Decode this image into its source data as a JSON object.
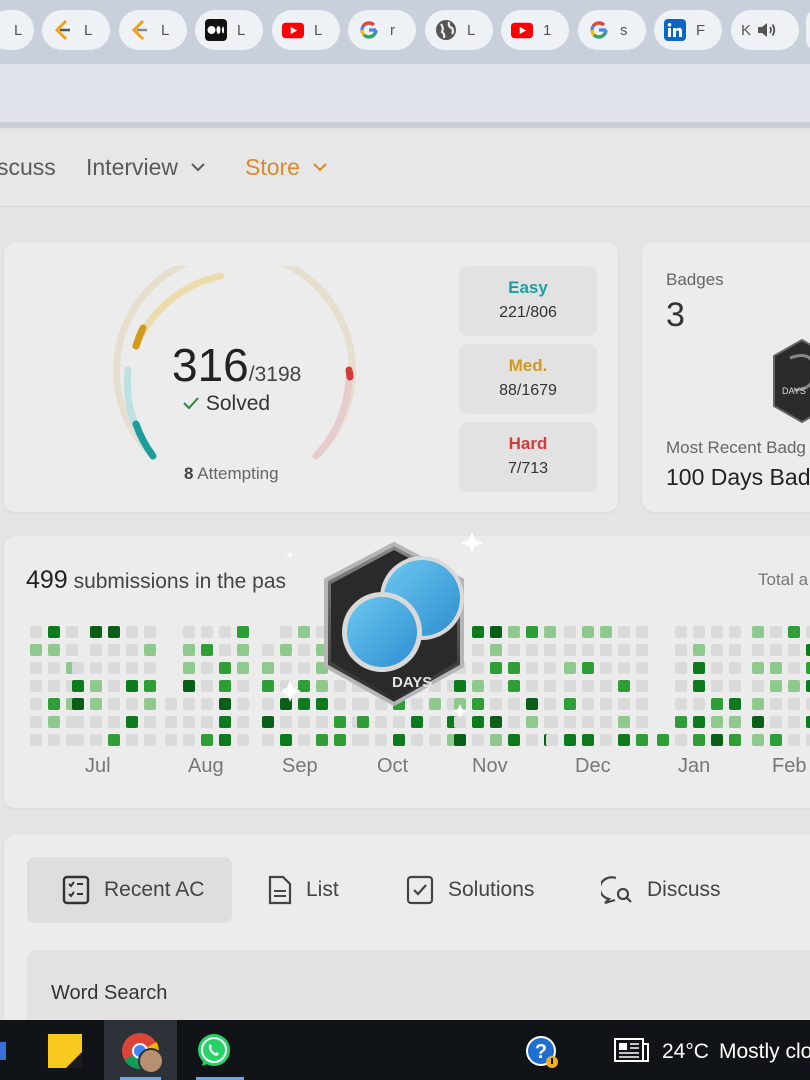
{
  "browser": {
    "bookmarks": [
      {
        "icon": "leetcode-icon",
        "label": "L"
      },
      {
        "icon": "leetcode-icon",
        "label": "L"
      },
      {
        "icon": "leetcode-icon",
        "label": "L"
      },
      {
        "icon": "medium-icon",
        "label": "L"
      },
      {
        "icon": "youtube-icon",
        "label": "L"
      },
      {
        "icon": "google-icon",
        "label": "r"
      },
      {
        "icon": "globe-icon",
        "label": "L"
      },
      {
        "icon": "youtube-icon",
        "label": "1"
      },
      {
        "icon": "google-icon",
        "label": "s"
      },
      {
        "icon": "linkedin-icon",
        "label": "F"
      },
      {
        "icon": "speaker-icon",
        "label": "K"
      }
    ]
  },
  "nav": {
    "discuss": "scuss",
    "interview": "Interview",
    "store": "Store"
  },
  "progress": {
    "solved": "316",
    "total": "/3198",
    "solved_label": "Solved",
    "attempting_count": "8",
    "attempting_label": "Attempting",
    "easy_label": "Easy",
    "easy_value": "221/806",
    "medium_label": "Med.",
    "medium_value": "88/1679",
    "hard_label": "Hard",
    "hard_value": "7/713"
  },
  "badges": {
    "title": "Badges",
    "count": "3",
    "recent_label": "Most Recent Badg",
    "recent_name": "100 Days Bad",
    "small_badge_text": "DAYS",
    "overlay_badge_text": "DAYS"
  },
  "submissions": {
    "count": "499",
    "text": "submissions in the pas",
    "total_label": "Total a",
    "months": [
      "Jul",
      "Aug",
      "Sep",
      "Oct",
      "Nov",
      "Dec",
      "Jan",
      "Feb"
    ]
  },
  "tabs": {
    "recent_ac": "Recent AC",
    "list": "List",
    "solutions": "Solutions",
    "discuss": "Discuss"
  },
  "recent": {
    "first_item": "Word Search"
  },
  "taskbar": {
    "temperature": "24°C",
    "weather": "Mostly clo"
  },
  "colors": {
    "easy": "#1e9fa0",
    "medium": "#d39a19",
    "hard": "#d33b3b",
    "accent": "#e38a1e",
    "heat_levels": [
      "#dadada",
      "#8fc98e",
      "#2f9e37",
      "#0e7a1e",
      "#0b5e17"
    ]
  }
}
